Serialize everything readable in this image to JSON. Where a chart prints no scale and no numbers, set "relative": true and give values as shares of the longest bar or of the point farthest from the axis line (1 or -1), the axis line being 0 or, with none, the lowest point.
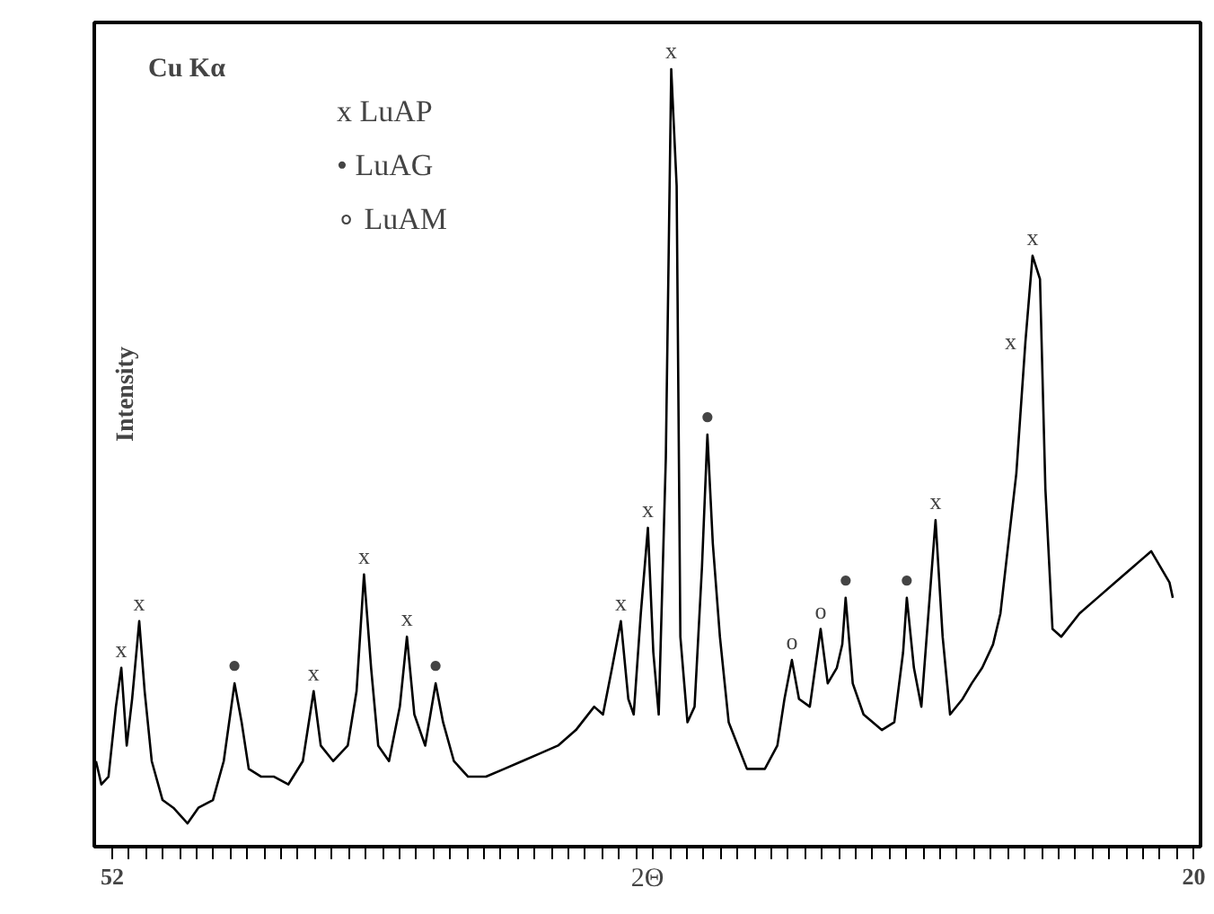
{
  "chart_data": {
    "type": "line",
    "relative": true,
    "xlabel": "2Θ",
    "ylabel": "Intensity",
    "color": "#000000",
    "grid": false,
    "xlim": [
      52.53,
      19.8
    ],
    "xticks": [
      52,
      {
        "value": 51.5,
        "label": null
      },
      {
        "value": 51,
        "label": null
      },
      {
        "value": 50.5,
        "label": null
      },
      {
        "value": 50,
        "label": null
      },
      {
        "value": 49.5,
        "label": null
      },
      {
        "value": 49,
        "label": null
      },
      {
        "value": 48.5,
        "label": null
      },
      {
        "value": 48,
        "label": null
      },
      {
        "value": 47.5,
        "label": null
      },
      {
        "value": 47,
        "label": null
      },
      {
        "value": 46.5,
        "label": null
      },
      {
        "value": 46,
        "label": null
      },
      {
        "value": 45.5,
        "label": null
      },
      {
        "value": 45,
        "label": null
      },
      {
        "value": 44.5,
        "label": null
      },
      {
        "value": 44,
        "label": null
      },
      {
        "value": 43.5,
        "label": null
      },
      {
        "value": 43,
        "label": null
      },
      {
        "value": 42.5,
        "label": null
      },
      {
        "value": 42,
        "label": null
      },
      {
        "value": 41.5,
        "label": null
      },
      {
        "value": 41,
        "label": null
      },
      {
        "value": 40.5,
        "label": null
      },
      {
        "value": 40,
        "label": null
      },
      {
        "value": 39.5,
        "label": null
      },
      {
        "value": 39,
        "label": null
      },
      {
        "value": 38.5,
        "label": null
      },
      {
        "value": 38,
        "label": null
      },
      {
        "value": 37.5,
        "label": null
      },
      {
        "value": 37,
        "label": null
      },
      {
        "value": 36.5,
        "label": null
      },
      {
        "value": 36,
        "label": null
      },
      {
        "value": 35.5,
        "label": null
      },
      {
        "value": 35,
        "label": null
      },
      {
        "value": 34.5,
        "label": null
      },
      {
        "value": 34,
        "label": null
      },
      {
        "value": 33.5,
        "label": null
      },
      {
        "value": 33,
        "label": null
      },
      {
        "value": 32.5,
        "label": null
      },
      {
        "value": 32,
        "label": null
      },
      {
        "value": 31.5,
        "label": null
      },
      {
        "value": 31,
        "label": null
      },
      {
        "value": 30.5,
        "label": null
      },
      {
        "value": 30,
        "label": null
      },
      {
        "value": 29.5,
        "label": null
      },
      {
        "value": 29,
        "label": null
      },
      {
        "value": 28.5,
        "label": null
      },
      {
        "value": 28,
        "label": null
      },
      {
        "value": 27.5,
        "label": null
      },
      {
        "value": 27,
        "label": null
      },
      {
        "value": 26.5,
        "label": null
      },
      {
        "value": 26,
        "label": null
      },
      {
        "value": 25.5,
        "label": null
      },
      {
        "value": 25,
        "label": null
      },
      {
        "value": 24.5,
        "label": null
      },
      {
        "value": 24,
        "label": null
      },
      {
        "value": 23.5,
        "label": null
      },
      {
        "value": 23,
        "label": null
      },
      {
        "value": 22.5,
        "label": null
      },
      {
        "value": 22,
        "label": null
      },
      {
        "value": 21.5,
        "label": null
      },
      {
        "value": 21,
        "label": null
      },
      {
        "value": 20.5,
        "label": null
      },
      20
    ],
    "tick_labels": "x",
    "x": [
      52.48,
      52.32,
      52.11,
      51.89,
      51.73,
      51.57,
      51.41,
      51.2,
      51.04,
      50.83,
      50.51,
      50.19,
      49.77,
      49.45,
      49.02,
      48.7,
      48.38,
      48.17,
      47.96,
      47.59,
      47.21,
      46.79,
      46.36,
      46.04,
      45.83,
      45.46,
      45.03,
      44.77,
      44.55,
      44.34,
      44.13,
      43.81,
      43.49,
      43.28,
      43.06,
      42.74,
      42.43,
      42.21,
      41.89,
      41.47,
      40.94,
      40.4,
      39.87,
      39.34,
      38.81,
      38.28,
      37.74,
      37.48,
      37.21,
      36.95,
      36.73,
      36.57,
      36.36,
      36.15,
      35.99,
      35.83,
      35.62,
      35.46,
      35.3,
      35.19,
      34.98,
      34.77,
      34.55,
      34.39,
      34.23,
      34.02,
      33.76,
      33.22,
      32.69,
      32.32,
      32.11,
      31.89,
      31.68,
      31.36,
      31.04,
      30.83,
      30.56,
      30.4,
      30.3,
      30.09,
      29.77,
      29.23,
      28.86,
      28.6,
      28.49,
      28.28,
      28.06,
      27.85,
      27.64,
      27.43,
      27.21,
      26.84,
      26.57,
      26.26,
      25.94,
      25.72,
      25.25,
      24.98,
      24.77,
      24.55,
      24.39,
      24.18,
      23.92,
      23.38,
      22.85,
      22.32,
      21.79,
      21.26,
      20.72,
      20.62
    ],
    "values": [
      0.11,
      0.08,
      0.09,
      0.18,
      0.23,
      0.13,
      0.19,
      0.29,
      0.2,
      0.11,
      0.06,
      0.05,
      0.03,
      0.05,
      0.06,
      0.11,
      0.21,
      0.16,
      0.1,
      0.09,
      0.09,
      0.08,
      0.11,
      0.2,
      0.13,
      0.11,
      0.13,
      0.2,
      0.35,
      0.23,
      0.13,
      0.11,
      0.18,
      0.27,
      0.17,
      0.13,
      0.21,
      0.16,
      0.11,
      0.09,
      0.09,
      0.1,
      0.11,
      0.12,
      0.13,
      0.15,
      0.18,
      0.17,
      0.23,
      0.29,
      0.19,
      0.17,
      0.3,
      0.41,
      0.25,
      0.17,
      0.5,
      1.0,
      0.85,
      0.27,
      0.16,
      0.18,
      0.36,
      0.53,
      0.39,
      0.27,
      0.16,
      0.1,
      0.1,
      0.13,
      0.19,
      0.24,
      0.19,
      0.18,
      0.28,
      0.21,
      0.23,
      0.26,
      0.32,
      0.21,
      0.17,
      0.15,
      0.16,
      0.25,
      0.32,
      0.23,
      0.18,
      0.3,
      0.42,
      0.27,
      0.17,
      0.19,
      0.21,
      0.23,
      0.26,
      0.3,
      0.48,
      0.65,
      0.76,
      0.73,
      0.46,
      0.28,
      0.27,
      0.3,
      0.32,
      0.34,
      0.36,
      0.38,
      0.34,
      0.32
    ],
    "annotations": [
      "Cu Kα",
      "x  LuAP",
      "•  LuAG",
      "∘  LuAM",
      {
        "text": "x",
        "x": 51.73,
        "y": 0.23
      },
      {
        "text": "x",
        "x": 51.2,
        "y": 0.29
      },
      {
        "text": "●",
        "x": 48.38,
        "y": 0.21
      },
      {
        "text": "x",
        "x": 46.04,
        "y": 0.2
      },
      {
        "text": "x",
        "x": 44.55,
        "y": 0.35
      },
      {
        "text": "x",
        "x": 43.28,
        "y": 0.27
      },
      {
        "text": "●",
        "x": 42.43,
        "y": 0.21
      },
      {
        "text": "x",
        "x": 36.95,
        "y": 0.29
      },
      {
        "text": "x",
        "x": 36.15,
        "y": 0.41
      },
      {
        "text": "x",
        "x": 35.46,
        "y": 1.0
      },
      {
        "text": "●",
        "x": 34.39,
        "y": 0.53
      },
      {
        "text": "o",
        "x": 31.89,
        "y": 0.24
      },
      {
        "text": "o",
        "x": 31.04,
        "y": 0.28
      },
      {
        "text": "●",
        "x": 30.3,
        "y": 0.32
      },
      {
        "text": "●",
        "x": 28.49,
        "y": 0.32
      },
      {
        "text": "x",
        "x": 27.64,
        "y": 0.42
      },
      {
        "text": "x",
        "x": 24.98,
        "y": 0.65
      },
      {
        "text": "x",
        "x": 24.77,
        "y": 0.76
      }
    ]
  }
}
